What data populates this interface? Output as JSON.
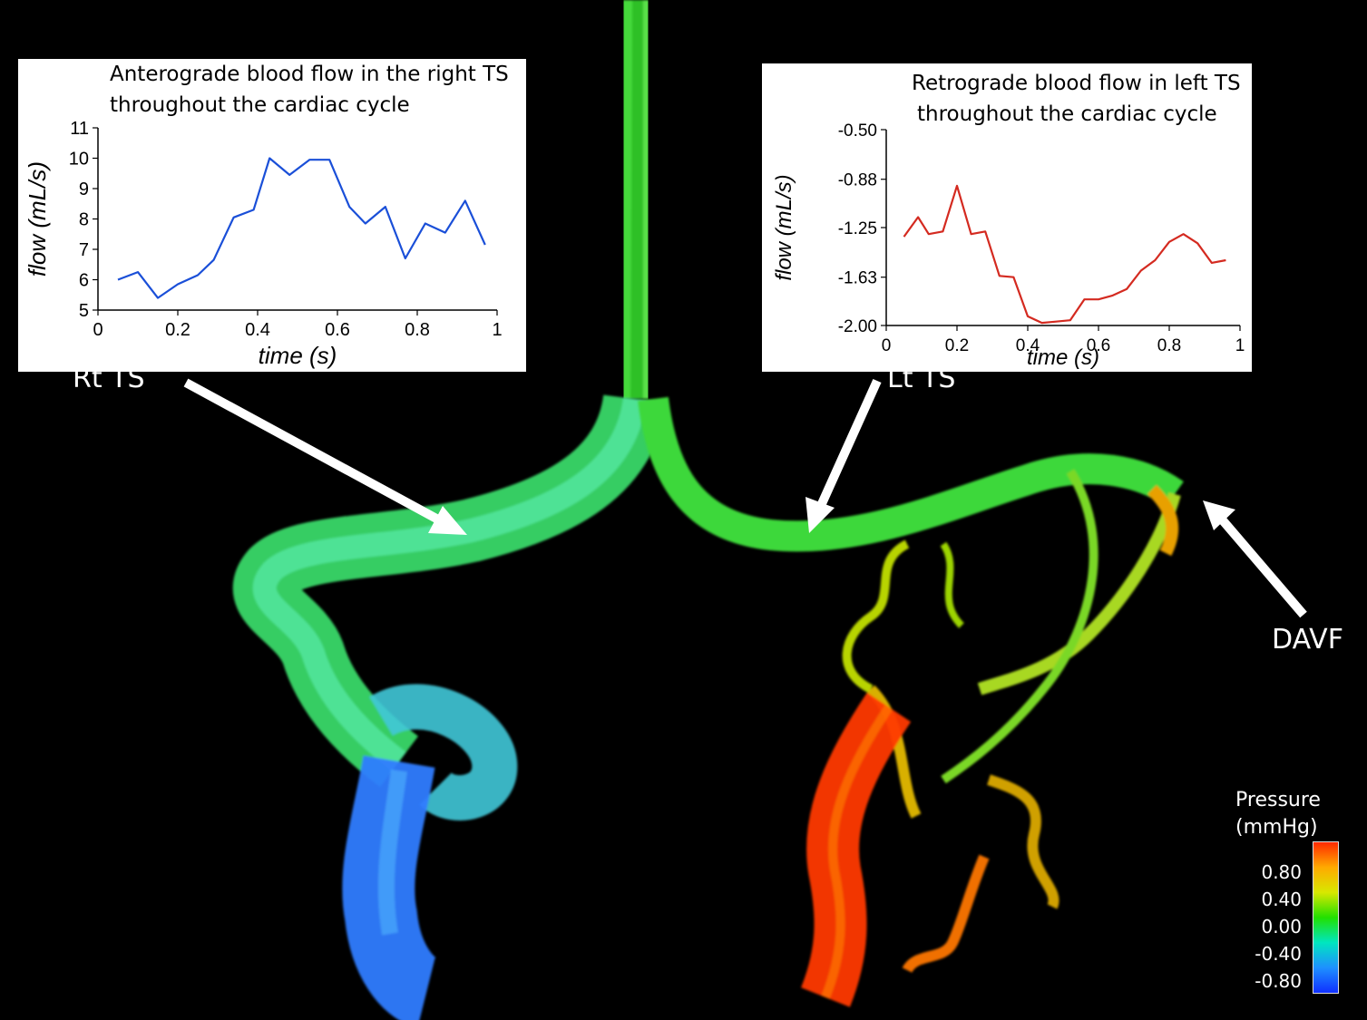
{
  "chart_data": [
    {
      "type": "line",
      "title": "Anterograde blood flow in the right TS throughout the cardiac cycle",
      "title_lines": [
        "Anterograde blood flow in the right TS",
        "throughout the cardiac cycle"
      ],
      "xlabel": "time (s)",
      "ylabel": "flow (mL/s)",
      "xlim": [
        0,
        1
      ],
      "ylim": [
        5,
        11
      ],
      "xticks": [
        "0",
        "0.2",
        "0.4",
        "0.6",
        "0.8",
        "1"
      ],
      "yticks": [
        "5",
        "6",
        "7",
        "8",
        "9",
        "10",
        "11"
      ],
      "grid": false,
      "series": [
        {
          "color": "#1a4fd8",
          "x": [
            0.05,
            0.1,
            0.15,
            0.2,
            0.25,
            0.29,
            0.34,
            0.39,
            0.43,
            0.48,
            0.53,
            0.58,
            0.63,
            0.67,
            0.72,
            0.77,
            0.82,
            0.87,
            0.92,
            0.97
          ],
          "y": [
            6.0,
            6.25,
            5.4,
            5.85,
            6.15,
            6.65,
            8.05,
            8.3,
            10.0,
            9.45,
            9.95,
            9.95,
            8.4,
            7.85,
            8.4,
            6.7,
            7.85,
            7.55,
            8.6,
            7.15
          ]
        }
      ]
    },
    {
      "type": "line",
      "title": "Retrograde blood flow in left TS throughout the cardiac cycle",
      "title_lines": [
        "Retrograde blood flow in left TS",
        "throughout the cardiac cycle"
      ],
      "xlabel": "time (s)",
      "ylabel": "flow (mL/s)",
      "xlim": [
        0,
        1
      ],
      "ylim": [
        -2.0,
        -0.5
      ],
      "xticks": [
        "0",
        "0.2",
        "0.4",
        "0.6",
        "0.8",
        "1"
      ],
      "yticks": [
        "-0.50",
        "-0.88",
        "-1.25",
        "-1.63",
        "-2.00"
      ],
      "grid": false,
      "series": [
        {
          "color": "#d42a20",
          "x": [
            0.05,
            0.09,
            0.12,
            0.16,
            0.2,
            0.24,
            0.28,
            0.32,
            0.36,
            0.4,
            0.44,
            0.48,
            0.52,
            0.56,
            0.6,
            0.64,
            0.68,
            0.72,
            0.76,
            0.8,
            0.84,
            0.88,
            0.92,
            0.96
          ],
          "y": [
            -1.32,
            -1.17,
            -1.3,
            -1.28,
            -0.93,
            -1.3,
            -1.28,
            -1.62,
            -1.63,
            -1.93,
            -1.98,
            -1.97,
            -1.96,
            -1.8,
            -1.8,
            -1.77,
            -1.72,
            -1.58,
            -1.5,
            -1.36,
            -1.3,
            -1.37,
            -1.52,
            -1.5
          ]
        }
      ]
    }
  ],
  "labels": {
    "rt_ts": "Rt TS",
    "lt_ts": "Lt TS",
    "davf": "DAVF"
  },
  "legend": {
    "title_line1": "Pressure",
    "title_line2": "(mmHg)",
    "ticks": [
      "0.80",
      "0.40",
      "0.00",
      "-0.40",
      "-0.80"
    ],
    "colors": [
      "#ff2a00",
      "#ffaa00",
      "#d8e800",
      "#22e000",
      "#00e6c0",
      "#1e90ff",
      "#1030ff"
    ]
  },
  "vessel_colors": {
    "sinus_green": "#3ee030",
    "right_cyan": "#40e8b8",
    "right_blue": "#3080ff",
    "left_yellow": "#c8d800",
    "left_red": "#ff3000"
  }
}
